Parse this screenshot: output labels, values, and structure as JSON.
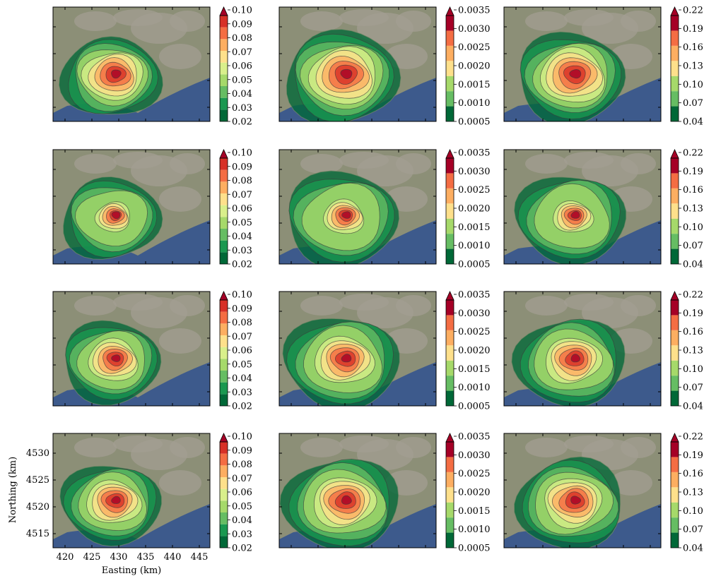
{
  "figure": {
    "xlabel": "Easting (km)",
    "ylabel": "Northing (km)",
    "x_ticks": [
      "420",
      "425",
      "430",
      "435",
      "440",
      "445"
    ],
    "y_ticks": [
      "4515",
      "4520",
      "4525",
      "4530"
    ]
  },
  "colorbars": [
    {
      "ticks": [
        "0.02",
        "0.03",
        "0.04",
        "0.05",
        "0.06",
        "0.07",
        "0.08",
        "0.09",
        "0.10"
      ],
      "extend": "max"
    },
    {
      "ticks": [
        "0.0005",
        "0.0010",
        "0.0015",
        "0.0020",
        "0.0025",
        "0.0030",
        "0.0035"
      ],
      "extend": "max"
    },
    {
      "ticks": [
        "0.04",
        "0.07",
        "0.10",
        "0.13",
        "0.16",
        "0.19",
        "0.22"
      ],
      "extend": "max"
    }
  ],
  "colors": {
    "levels": [
      "#006837",
      "#1a9850",
      "#66bd63",
      "#a6d96a",
      "#d9ef8b",
      "#fee08b",
      "#fdae61",
      "#f46d43",
      "#d73027",
      "#a50026"
    ],
    "sea": "#3d5a8c",
    "land": "#8c8f77",
    "urban": "#a39e91"
  }
}
